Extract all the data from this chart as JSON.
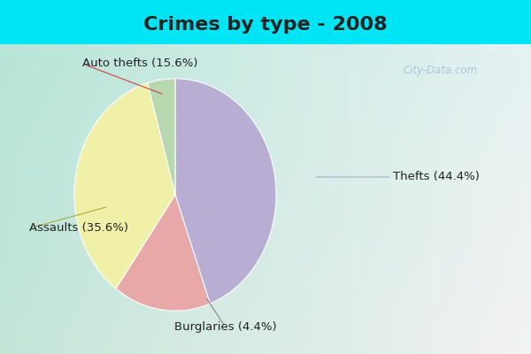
{
  "title": "Crimes by type - 2008",
  "slices": [
    {
      "label": "Thefts (44.4%)",
      "value": 44.4,
      "color": "#b8aed4"
    },
    {
      "label": "Auto thefts (15.6%)",
      "value": 15.6,
      "color": "#e8a8a8"
    },
    {
      "label": "Assaults (35.6%)",
      "value": 35.6,
      "color": "#f0f0a8"
    },
    {
      "label": "Burglaries (4.4%)",
      "value": 4.4,
      "color": "#b8d8b0"
    }
  ],
  "bg_cyan": "#00e5f5",
  "bg_main_tl": "#b8e0d0",
  "bg_main_br": "#d8eee8",
  "title_fontsize": 16,
  "label_fontsize": 9.5,
  "watermark": "City-Data.com",
  "title_color": "#222222",
  "label_color": "#222222",
  "thefts_line_color": "#aaaacc",
  "auto_line_color": "#cc4444",
  "assaults_line_color": "#aaaa44",
  "burglaries_line_color": "#888888"
}
